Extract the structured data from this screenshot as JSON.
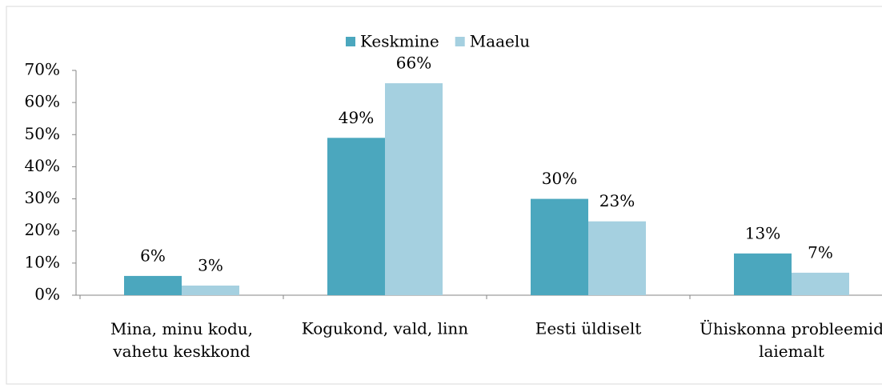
{
  "chart_data": {
    "type": "bar",
    "categories": [
      "Mina, minu kodu,\nvahetu keskkond",
      "Kogukond, vald, linn",
      "Eesti üldiselt",
      "Ühiskonna probleemid\nlaiemalt"
    ],
    "series": [
      {
        "name": "Keskmine",
        "color": "#4ba7be",
        "values": [
          6,
          49,
          30,
          13
        ],
        "value_labels": [
          "6%",
          "49%",
          "30%",
          "13%"
        ]
      },
      {
        "name": "Maaelu",
        "color": "#a5d0e0",
        "values": [
          3,
          66,
          23,
          7
        ],
        "value_labels": [
          "3%",
          "66%",
          "23%",
          "7%"
        ]
      }
    ],
    "ylim": [
      0,
      70
    ],
    "yticks": [
      {
        "value": 0,
        "label": "0%"
      },
      {
        "value": 10,
        "label": "10%"
      },
      {
        "value": 20,
        "label": "20%"
      },
      {
        "value": 30,
        "label": "30%"
      },
      {
        "value": 40,
        "label": "40%"
      },
      {
        "value": 50,
        "label": "50%"
      },
      {
        "value": 60,
        "label": "60%"
      },
      {
        "value": 70,
        "label": "70%"
      }
    ],
    "legend": "top"
  }
}
